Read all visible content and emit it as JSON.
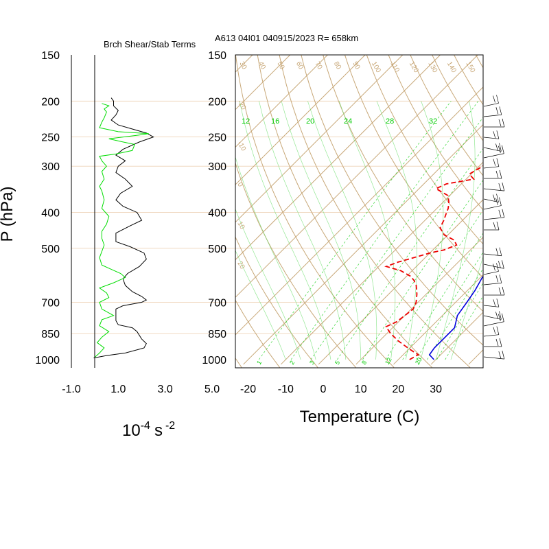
{
  "chart_data": [
    {
      "type": "line",
      "title": "Brch Shear/Stab Terms",
      "xlabel": "10",
      "xlabel_exponent": "-4",
      "xlabel_unit": "s",
      "xlabel_unit_exponent": "-2",
      "ylabel": "P (hPa)",
      "xlim": [
        -1.0,
        5.0
      ],
      "ylim": [
        1000,
        150
      ],
      "y_scale": "log",
      "x_ticks": [
        "-1.0",
        "1.0",
        "3.0",
        "5.0"
      ],
      "pressure_levels": [
        150,
        200,
        250,
        300,
        400,
        500,
        700,
        850,
        1000
      ],
      "colors": {
        "shear": "#000000",
        "stab": "#00dd00",
        "gridline": "#f0d8c0"
      },
      "series": [
        {
          "color": "#000000",
          "points": [
            [
              -0.05,
              990
            ],
            [
              0.5,
              975
            ],
            [
              1.3,
              960
            ],
            [
              2.1,
              930
            ],
            [
              2.2,
              905
            ],
            [
              2.0,
              880
            ],
            [
              1.9,
              860
            ],
            [
              1.8,
              840
            ],
            [
              1.6,
              820
            ],
            [
              1.0,
              805
            ],
            [
              0.9,
              785
            ],
            [
              0.9,
              760
            ],
            [
              0.9,
              730
            ],
            [
              1.2,
              715
            ],
            [
              2.0,
              700
            ],
            [
              2.2,
              690
            ],
            [
              2.0,
              675
            ],
            [
              1.6,
              655
            ],
            [
              1.3,
              630
            ],
            [
              1.2,
              605
            ],
            [
              1.4,
              585
            ],
            [
              1.9,
              560
            ],
            [
              2.2,
              535
            ],
            [
              2.1,
              515
            ],
            [
              1.5,
              495
            ],
            [
              0.9,
              480
            ],
            [
              0.9,
              455
            ],
            [
              1.5,
              435
            ],
            [
              2.0,
              420
            ],
            [
              1.8,
              400
            ],
            [
              1.2,
              385
            ],
            [
              0.9,
              370
            ],
            [
              1.1,
              355
            ],
            [
              1.6,
              340
            ],
            [
              1.3,
              325
            ],
            [
              0.9,
              312
            ],
            [
              1.0,
              300
            ],
            [
              1.3,
              290
            ],
            [
              0.9,
              280
            ],
            [
              1.2,
              270
            ],
            [
              1.9,
              258
            ],
            [
              2.5,
              250
            ],
            [
              2.2,
              244
            ],
            [
              1.6,
              238
            ],
            [
              1.0,
              232
            ],
            [
              0.7,
              225
            ],
            [
              0.9,
              218
            ],
            [
              1.0,
              212
            ],
            [
              0.8,
              206
            ],
            [
              0.8,
              200
            ],
            [
              0.7,
              196
            ]
          ]
        },
        {
          "color": "#00dd00",
          "points": [
            [
              0.0,
              985
            ],
            [
              0.2,
              960
            ],
            [
              0.4,
              930
            ],
            [
              0.1,
              900
            ],
            [
              0.3,
              870
            ],
            [
              0.6,
              840
            ],
            [
              0.2,
              810
            ],
            [
              0.3,
              780
            ],
            [
              0.8,
              760
            ],
            [
              0.3,
              730
            ],
            [
              0.2,
              700
            ],
            [
              0.6,
              680
            ],
            [
              0.5,
              660
            ],
            [
              0.2,
              640
            ],
            [
              0.8,
              620
            ],
            [
              1.3,
              600
            ],
            [
              1.1,
              585
            ],
            [
              0.7,
              570
            ],
            [
              0.3,
              555
            ],
            [
              0.2,
              530
            ],
            [
              0.3,
              510
            ],
            [
              0.4,
              490
            ],
            [
              0.3,
              470
            ],
            [
              0.3,
              450
            ],
            [
              0.5,
              430
            ],
            [
              0.6,
              410
            ],
            [
              0.3,
              390
            ],
            [
              0.4,
              370
            ],
            [
              0.3,
              350
            ],
            [
              0.2,
              340
            ],
            [
              0.4,
              325
            ],
            [
              0.3,
              310
            ],
            [
              0.5,
              300
            ],
            [
              0.3,
              290
            ],
            [
              0.2,
              282
            ],
            [
              0.9,
              278
            ],
            [
              1.6,
              272
            ],
            [
              1.7,
              262
            ],
            [
              1.2,
              258
            ],
            [
              0.6,
              253
            ],
            [
              1.9,
              247
            ],
            [
              2.3,
              245
            ],
            [
              1.0,
              242
            ],
            [
              0.2,
              236
            ],
            [
              0.3,
              228
            ],
            [
              0.4,
              222
            ],
            [
              0.5,
              214
            ],
            [
              0.4,
              210
            ],
            [
              0.6,
              206
            ],
            [
              0.3,
              203
            ]
          ]
        }
      ]
    },
    {
      "type": "line",
      "chart_kind": "skew-T log-P",
      "title": "A613 04I01 040915/2023 R= 658km",
      "xlabel": "Temperature (C)",
      "ylabel": "P (hPa)",
      "xlim": [
        -23,
        42
      ],
      "ylim": [
        1000,
        150
      ],
      "y_scale": "log",
      "x_ticks": [
        "-20",
        "-10",
        "0",
        "10",
        "20",
        "30"
      ],
      "pressure_levels": [
        150,
        200,
        250,
        300,
        400,
        500,
        700,
        850,
        1000
      ],
      "colors": {
        "temperature": "#0000dd",
        "dewpoint": "#ee0000",
        "dry_adiabat": "#c8a878",
        "isotherm": "#c8a878",
        "mixing_ratio": "#00cc00"
      },
      "temperature": {
        "points": [
          [
            29.5,
            1000
          ],
          [
            27,
            970
          ],
          [
            26.5,
            930
          ],
          [
            26.5,
            880
          ],
          [
            26.5,
            820
          ],
          [
            24,
            760
          ],
          [
            23,
            700
          ],
          [
            22,
            650
          ],
          [
            20.5,
            600
          ],
          [
            20,
            550
          ],
          [
            19.8,
            520
          ],
          [
            18.5,
            490
          ],
          [
            17,
            460
          ],
          [
            15.5,
            430
          ],
          [
            14.2,
            400
          ],
          [
            12.5,
            370
          ],
          [
            10.5,
            340
          ],
          [
            8.5,
            310
          ],
          [
            7,
            285
          ],
          [
            6,
            265
          ],
          [
            5.5,
            250
          ],
          [
            5.2,
            235
          ],
          [
            5,
            220
          ],
          [
            3.5,
            205
          ],
          [
            2,
            195
          ]
        ]
      },
      "dewpoint": {
        "points": [
          [
            23,
            1000
          ],
          [
            24,
            970
          ],
          [
            20,
            935
          ],
          [
            15,
            890
          ],
          [
            11,
            850
          ],
          [
            8,
            815
          ],
          [
            9.5,
            790
          ],
          [
            10,
            760
          ],
          [
            10.5,
            730
          ],
          [
            9.5,
            700
          ],
          [
            7.5,
            665
          ],
          [
            5,
            630
          ],
          [
            3,
            610
          ],
          [
            1,
            595
          ],
          [
            -3,
            575
          ],
          [
            -8,
            560
          ],
          [
            -6,
            545
          ],
          [
            -3,
            530
          ],
          [
            0,
            515
          ],
          [
            3,
            505
          ],
          [
            5,
            490
          ],
          [
            3,
            475
          ],
          [
            -1,
            460
          ],
          [
            -4,
            440
          ],
          [
            -5,
            420
          ],
          [
            -6,
            405
          ],
          [
            -7,
            390
          ],
          [
            -8.5,
            375
          ],
          [
            -10.5,
            360
          ],
          [
            -15.5,
            345
          ],
          [
            -14,
            335
          ],
          [
            -8,
            325
          ],
          [
            -10.5,
            315
          ],
          [
            -9,
            300
          ],
          [
            -9.5,
            285
          ],
          [
            -11,
            270
          ],
          [
            -12.5,
            255
          ],
          [
            -14,
            248
          ],
          [
            -14.5,
            230
          ],
          [
            -14,
            215
          ]
        ]
      },
      "dry_adiabat_labels": [
        30,
        40,
        50,
        60,
        70,
        80,
        90,
        100,
        110,
        120,
        130,
        140,
        150
      ],
      "isotherm_side_labels": [
        "-20",
        "-10",
        "0",
        "10",
        "20"
      ],
      "mixing_ratio_top_labels": [
        "12",
        "16",
        "20",
        "24",
        "28",
        "32"
      ],
      "mixing_ratio_bottom_labels": [
        "1",
        "2",
        "3",
        "5",
        "8",
        "12",
        "20"
      ]
    }
  ]
}
